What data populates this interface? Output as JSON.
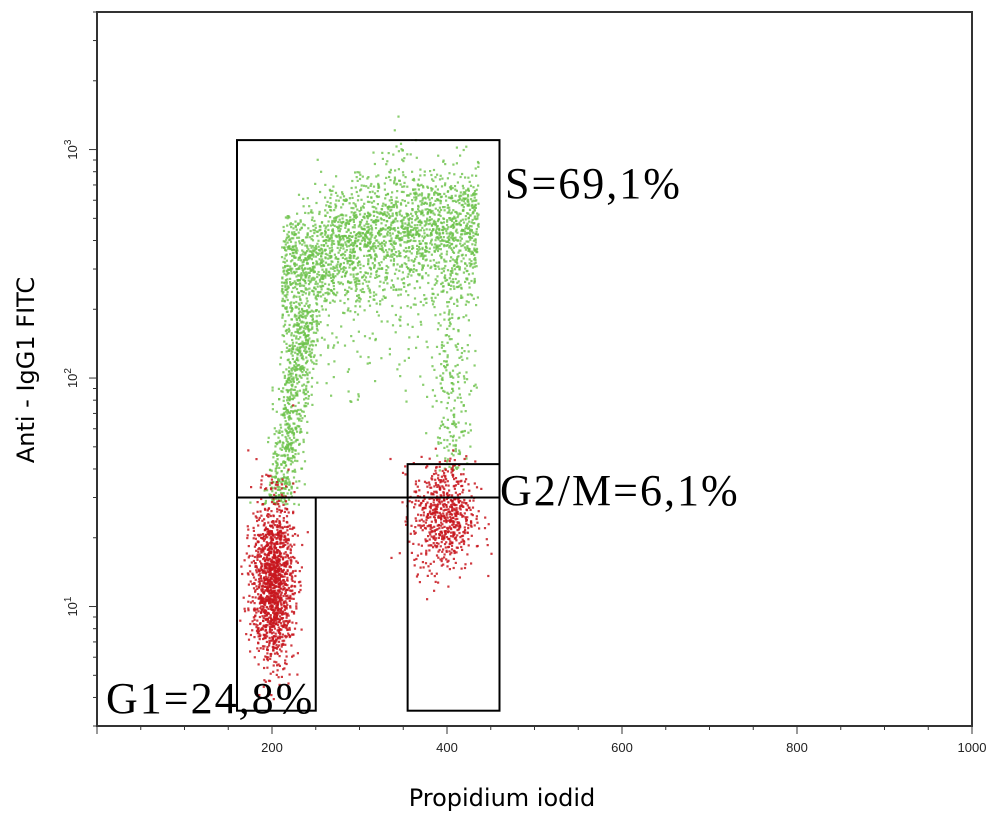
{
  "chart_data": {
    "type": "scatter",
    "title": "",
    "xlabel": "Propidium iodid",
    "ylabel": "Anti - IgG1 FITC",
    "x_range": [
      0,
      1000
    ],
    "y_range": [
      3,
      4000
    ],
    "y_scale": "log",
    "x_ticks": [
      200,
      400,
      600,
      800,
      1000
    ],
    "y_ticks": [
      {
        "value": 10,
        "base": "10",
        "exp": "1"
      },
      {
        "value": 100,
        "base": "10",
        "exp": "2"
      },
      {
        "value": 1000,
        "base": "10",
        "exp": "3"
      }
    ],
    "grid": false,
    "series": [
      {
        "population": "S",
        "color": "#6cc24a",
        "description_regions": [
          {
            "x": [
              190,
              215
            ],
            "y": [
              30,
              180
            ]
          },
          {
            "x": [
              200,
              290
            ],
            "y": [
              130,
              650
            ]
          },
          {
            "x": [
              280,
              420
            ],
            "y": [
              200,
              700
            ]
          },
          {
            "x": [
              380,
              420
            ],
            "y": [
              40,
              300
            ]
          }
        ]
      },
      {
        "population": "G1",
        "color": "#c8161d",
        "center": [
          200,
          13
        ],
        "spread": [
          12,
          0.28
        ]
      },
      {
        "population": "G2/M",
        "color": "#c8161d",
        "center": [
          395,
          25
        ],
        "spread": [
          18,
          0.22
        ]
      }
    ],
    "gates": [
      {
        "name": "S",
        "label": "S=69,1%",
        "x": [
          160,
          460
        ],
        "y": [
          30,
          1100
        ]
      },
      {
        "name": "G1",
        "label": "G1=24,8%",
        "x": [
          160,
          250
        ],
        "y": [
          3.5,
          30
        ]
      },
      {
        "name": "G2/M",
        "label": "G2/M=6,1%",
        "x": [
          355,
          460
        ],
        "y": [
          3.5,
          42
        ]
      }
    ]
  }
}
